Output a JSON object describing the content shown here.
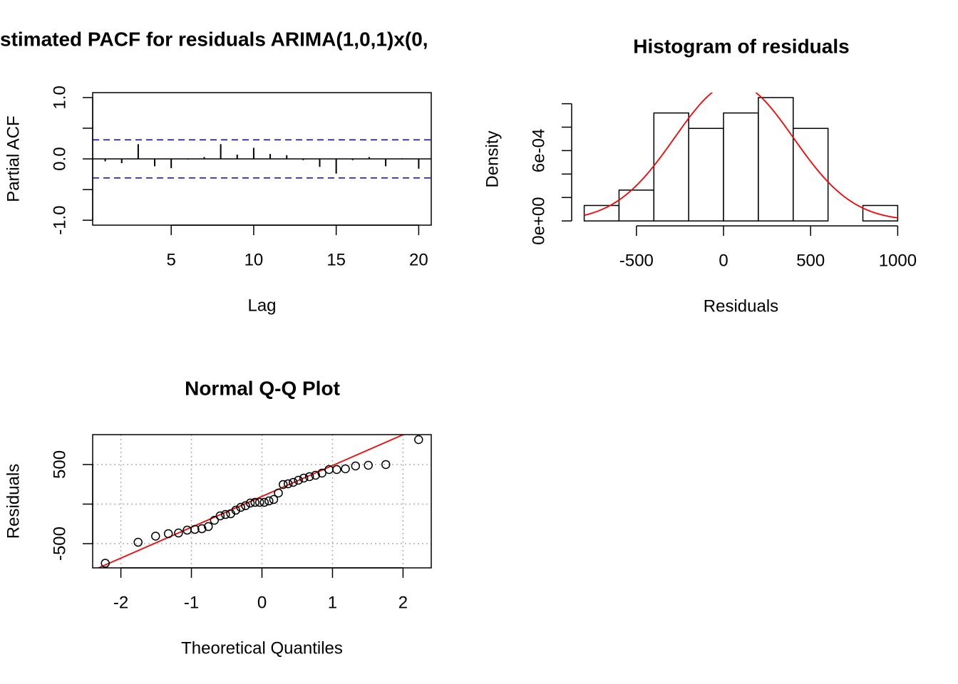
{
  "chart_data": [
    {
      "type": "pacf",
      "title": "stimated PACF for residuals ARIMA(1,0,1)x(0,",
      "xlabel": "Lag",
      "ylabel": "Partial ACF",
      "x": [
        1,
        2,
        3,
        4,
        5,
        6,
        7,
        8,
        9,
        10,
        11,
        12,
        13,
        14,
        15,
        16,
        17,
        18,
        19,
        20
      ],
      "values": [
        -0.04,
        -0.07,
        0.24,
        -0.12,
        -0.15,
        -0.01,
        0.03,
        0.24,
        0.07,
        0.18,
        0.08,
        0.06,
        -0.02,
        -0.13,
        -0.24,
        -0.02,
        0.03,
        -0.12,
        0.01,
        -0.16
      ],
      "color": "#000000",
      "bands": [
        0.31,
        -0.31
      ],
      "band_color": "#0000ff",
      "xlim": [
        0.24,
        20.76
      ],
      "ylim": [
        -1.08,
        1.08
      ],
      "xticks": [
        5,
        10,
        15,
        20
      ],
      "yticks": [
        {
          "value": -1,
          "label": "-1.0"
        },
        {
          "value": 0,
          "label": "0.0"
        },
        {
          "value": 1,
          "label": "1.0"
        }
      ],
      "yticks_unlabeled": [
        -0.5,
        0.5
      ]
    },
    {
      "type": "histogram",
      "title": "Histogram of residuals",
      "xlabel": "Residuals",
      "ylabel": "Density",
      "bins": [
        -800,
        -600,
        -400,
        -200,
        0,
        200,
        400,
        600,
        800,
        1000
      ],
      "values": [
        0.0001316,
        0.0002632,
        0.0009211,
        0.0007895,
        0.0009211,
        0.0010526,
        0.0007895,
        0,
        0.0001316
      ],
      "color": "#ffffff",
      "curve": {
        "mean": 60,
        "sd": 340,
        "color": "#ff0000"
      },
      "xlim": [
        -872,
        1072
      ],
      "ylim": [
        -4.21e-05,
        0.0010947
      ],
      "xticks": [
        -500,
        0,
        500,
        1000
      ],
      "yticks": [
        {
          "value": 0,
          "label": "0e+00"
        },
        {
          "value": 0.0006,
          "label": "6e-04"
        }
      ],
      "yticks_unlabeled": [
        0.0002,
        0.0004,
        0.0008,
        0.001
      ]
    },
    {
      "type": "qq",
      "title": "Normal Q-Q Plot",
      "xlabel": "Theoretical Quantiles",
      "ylabel": "Residuals",
      "x": [
        -2.221,
        -1.756,
        -1.508,
        -1.327,
        -1.183,
        -1.06,
        -0.951,
        -0.851,
        -0.76,
        -0.674,
        -0.593,
        -0.517,
        -0.443,
        -0.371,
        -0.301,
        -0.233,
        -0.166,
        -0.099,
        -0.033,
        0.033,
        0.099,
        0.166,
        0.233,
        0.301,
        0.371,
        0.443,
        0.517,
        0.593,
        0.674,
        0.76,
        0.851,
        0.951,
        1.06,
        1.183,
        1.327,
        1.508,
        1.756,
        2.221
      ],
      "values": [
        -748,
        -482,
        -405,
        -374,
        -365,
        -329,
        -320,
        -311,
        -284,
        -205,
        -149,
        -131,
        -122,
        -77,
        -41,
        -20,
        13,
        22,
        22,
        22,
        40,
        58,
        140,
        248,
        257,
        275,
        302,
        329,
        347,
        365,
        392,
        437,
        437,
        446,
        482,
        491,
        500,
        815
      ],
      "color": "#000000",
      "line": {
        "intercept": 97,
        "slope": 390,
        "color": "#ff0000"
      },
      "grid": true,
      "xlim": [
        -2.4,
        2.4
      ],
      "ylim": [
        -806,
        878
      ],
      "xticks": [
        -2,
        -1,
        0,
        1,
        2
      ],
      "yticks": [
        -500,
        500
      ],
      "yticks_unlabeled": [
        0
      ]
    }
  ]
}
